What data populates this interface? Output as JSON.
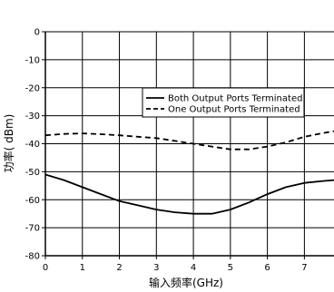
{
  "chart_data": {
    "type": "line",
    "xlabel": "输入频率(GHz)",
    "ylabel": "功率( dBm)",
    "xlim": [
      0,
      7.8
    ],
    "ylim": [
      -80,
      0
    ],
    "x_ticks": [
      "0",
      "1",
      "2",
      "3",
      "4",
      "5",
      "6",
      "7"
    ],
    "y_ticks": [
      "0",
      "-10",
      "-20",
      "-30",
      "-40",
      "-50",
      "-60",
      "-70",
      "-80"
    ],
    "grid": true,
    "legend_position": "upper-right",
    "series": [
      {
        "name": "Both Output Ports Terminated",
        "style": "solid",
        "color": "#000000",
        "x": [
          0,
          0.5,
          1,
          1.5,
          2,
          2.5,
          3,
          3.5,
          4,
          4.5,
          5,
          5.5,
          6,
          6.5,
          7,
          7.5,
          7.8
        ],
        "y": [
          -51,
          -53,
          -55.5,
          -58,
          -60.5,
          -62,
          -63.5,
          -64.5,
          -65,
          -65,
          -63.5,
          -61,
          -58,
          -55.5,
          -54,
          -53.3,
          -53
        ]
      },
      {
        "name": "One Output Ports Terminated",
        "style": "dashed",
        "color": "#000000",
        "x": [
          0,
          0.5,
          1,
          1.5,
          2,
          2.5,
          3,
          3.5,
          4,
          4.5,
          5,
          5.5,
          6,
          6.5,
          7,
          7.5,
          7.8
        ],
        "y": [
          -37,
          -36.5,
          -36.3,
          -36.6,
          -37,
          -37.5,
          -38,
          -39,
          -40,
          -41,
          -42,
          -42,
          -41,
          -39.5,
          -37.5,
          -36.2,
          -35.5
        ]
      }
    ]
  }
}
